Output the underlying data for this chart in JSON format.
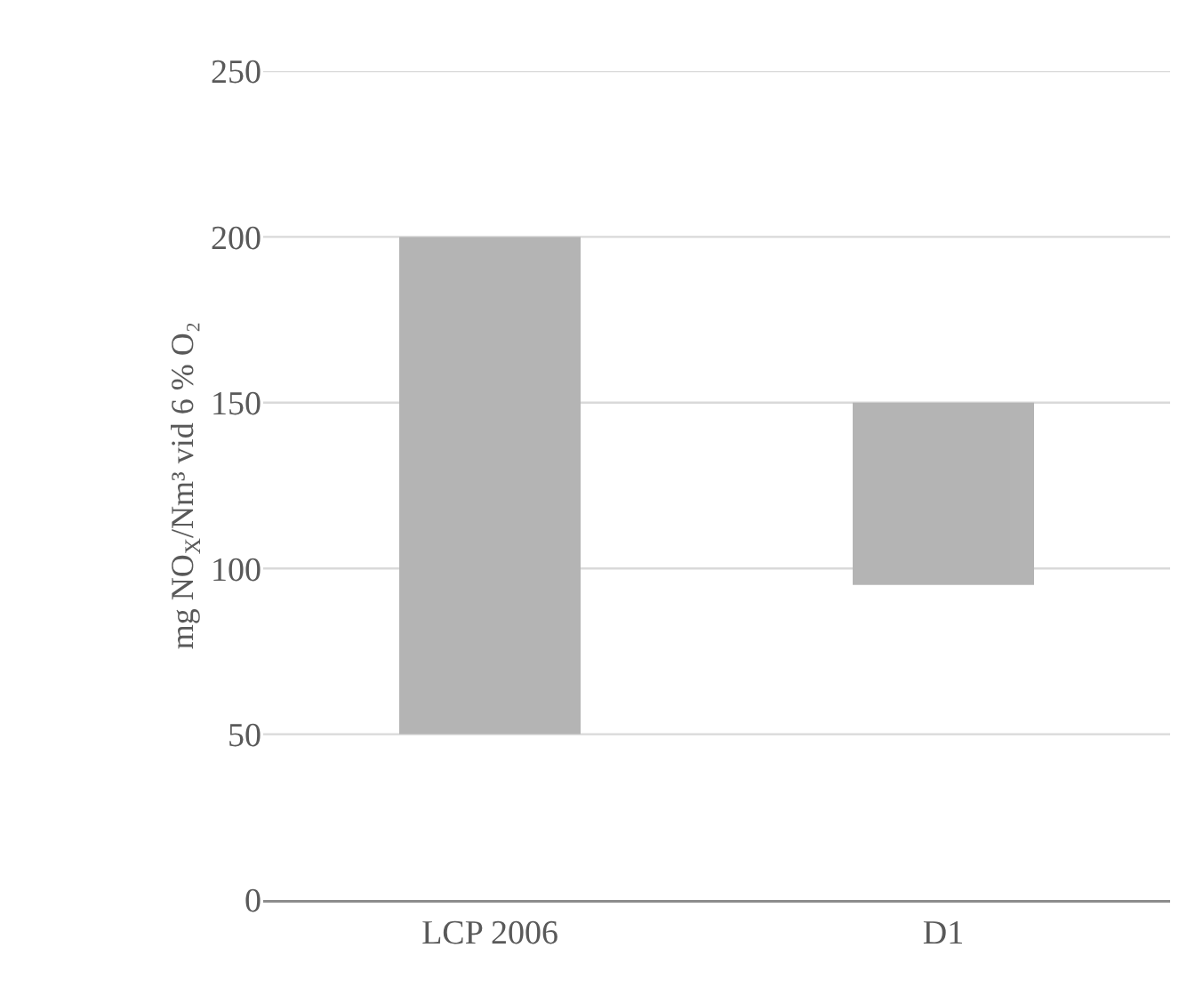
{
  "chart_data": {
    "type": "bar",
    "ylabel": "mg NO$_{X}$/Nm³ vid 6 % O₂",
    "categories": [
      "LCP 2006",
      "D1"
    ],
    "base": [
      50,
      95
    ],
    "values": [
      150,
      55
    ],
    "color": "#b4b4b4",
    "ylim": [
      0,
      250
    ],
    "yticks": [
      0,
      50,
      100,
      150,
      200,
      250
    ],
    "grid": "y"
  }
}
